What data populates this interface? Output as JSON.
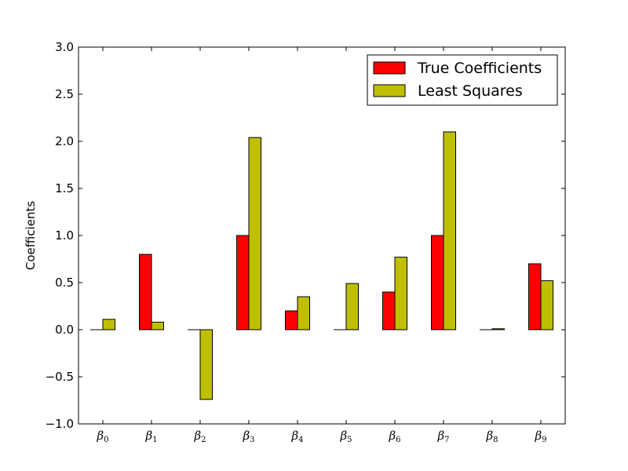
{
  "chart_data": {
    "type": "bar",
    "categories": [
      "β0",
      "β1",
      "β2",
      "β3",
      "β4",
      "β5",
      "β6",
      "β7",
      "β8",
      "β9"
    ],
    "category_parts": [
      {
        "base": "β",
        "sub": "0"
      },
      {
        "base": "β",
        "sub": "1"
      },
      {
        "base": "β",
        "sub": "2"
      },
      {
        "base": "β",
        "sub": "3"
      },
      {
        "base": "β",
        "sub": "4"
      },
      {
        "base": "β",
        "sub": "5"
      },
      {
        "base": "β",
        "sub": "6"
      },
      {
        "base": "β",
        "sub": "7"
      },
      {
        "base": "β",
        "sub": "8"
      },
      {
        "base": "β",
        "sub": "9"
      }
    ],
    "series": [
      {
        "name": "True Coefficients",
        "color": "#ff0000",
        "values": [
          0,
          0.8,
          0,
          1.0,
          0.2,
          0,
          0.4,
          1.0,
          0,
          0.7
        ]
      },
      {
        "name": "Least Squares",
        "color": "#bfbf00",
        "values": [
          0.11,
          0.08,
          -0.74,
          2.04,
          0.35,
          0.49,
          0.77,
          2.1,
          0.01,
          0.52
        ]
      }
    ],
    "ylabel": "Coefficients",
    "xlabel": "",
    "title": "",
    "ylim": [
      -1.0,
      3.0
    ],
    "yticks": [
      -1.0,
      -0.5,
      0.0,
      0.5,
      1.0,
      1.5,
      2.0,
      2.5,
      3.0
    ],
    "ytick_labels": [
      "−1.0",
      "−0.5",
      "0.0",
      "0.5",
      "1.0",
      "1.5",
      "2.0",
      "2.5",
      "3.0"
    ],
    "legend_position": "top-right",
    "grid": false
  }
}
